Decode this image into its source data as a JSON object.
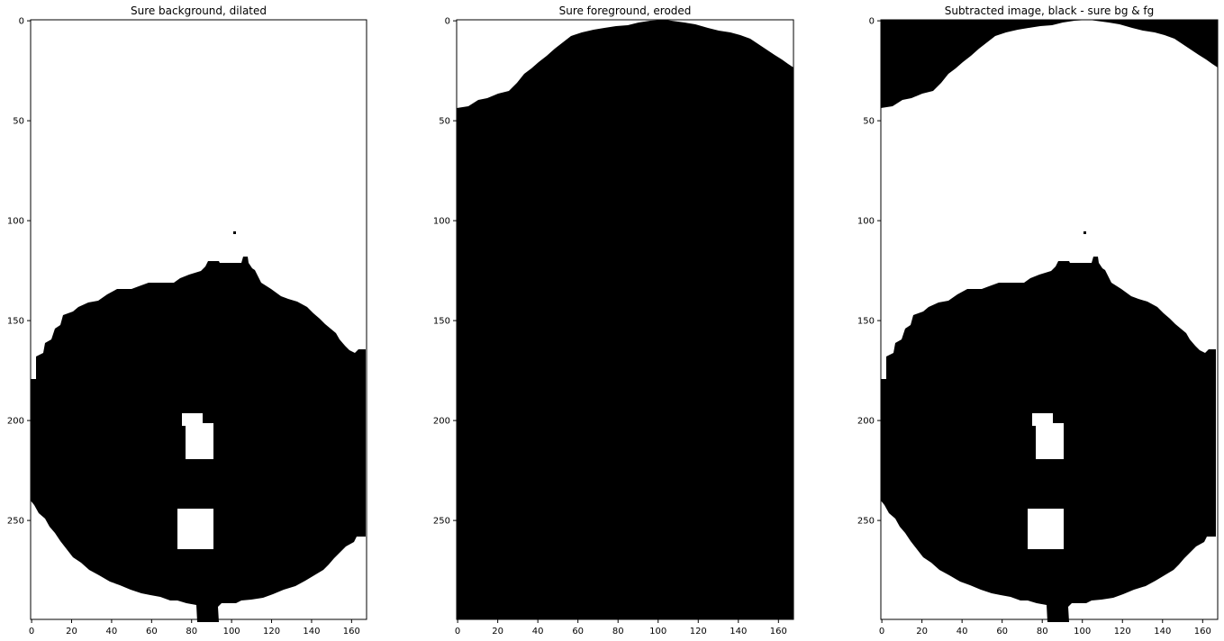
{
  "chart_data": [
    {
      "type": "heatmap",
      "title": "Sure background, dilated",
      "colormap": "gray",
      "xlim": [
        -0.5,
        167.5
      ],
      "ylim": [
        299.5,
        -0.5
      ],
      "xticks": [
        0,
        20,
        40,
        60,
        80,
        100,
        120,
        140,
        160
      ],
      "yticks": [
        0,
        50,
        100,
        150,
        200,
        250
      ],
      "image_shape": [
        300,
        168
      ],
      "regions": [
        {
          "color": "#ffffff",
          "shape": "background",
          "description": "white everywhere except the disc"
        },
        {
          "color": "#000000",
          "shape": "disc",
          "y_range": [
            119,
            299
          ],
          "x_range": [
            0,
            167
          ]
        },
        {
          "color": "#ffffff",
          "shape": "hole",
          "y_range": [
            197,
            219
          ],
          "x_range": [
            75,
            91
          ]
        },
        {
          "color": "#ffffff",
          "shape": "hole",
          "y_range": [
            244,
            263
          ],
          "x_range": [
            72,
            92
          ]
        }
      ]
    },
    {
      "type": "heatmap",
      "title": "Sure foreground, eroded",
      "colormap": "gray",
      "xlim": [
        -0.5,
        167.5
      ],
      "ylim": [
        299.5,
        -0.5
      ],
      "xticks": [
        0,
        20,
        40,
        60,
        80,
        100,
        120,
        140,
        160
      ],
      "yticks": [
        0,
        50,
        100,
        150,
        200,
        250
      ],
      "image_shape": [
        300,
        168
      ],
      "regions": [
        {
          "color": "#000000",
          "shape": "filled",
          "description": "black everywhere below an arched top edge"
        },
        {
          "color": "#ffffff",
          "shape": "top-corners",
          "y_range": [
            0,
            45
          ]
        }
      ]
    },
    {
      "type": "heatmap",
      "title": "Subtracted image, black - sure bg & fg",
      "colormap": "gray",
      "xlim": [
        -0.5,
        167.5
      ],
      "ylim": [
        299.5,
        -0.5
      ],
      "xticks": [
        0,
        20,
        40,
        60,
        80,
        100,
        120,
        140,
        160
      ],
      "yticks": [
        0,
        50,
        100,
        150,
        200,
        250
      ],
      "image_shape": [
        300,
        168
      ],
      "regions": [
        {
          "color": "#000000",
          "shape": "top-corners",
          "y_range": [
            0,
            45
          ]
        },
        {
          "color": "#ffffff",
          "shape": "band",
          "y_range": [
            0,
            135
          ]
        },
        {
          "color": "#000000",
          "shape": "disc",
          "y_range": [
            119,
            299
          ],
          "x_range": [
            0,
            167
          ]
        },
        {
          "color": "#ffffff",
          "shape": "hole",
          "y_range": [
            197,
            219
          ],
          "x_range": [
            75,
            91
          ]
        },
        {
          "color": "#ffffff",
          "shape": "hole",
          "y_range": [
            244,
            263
          ],
          "x_range": [
            72,
            92
          ]
        }
      ]
    }
  ]
}
